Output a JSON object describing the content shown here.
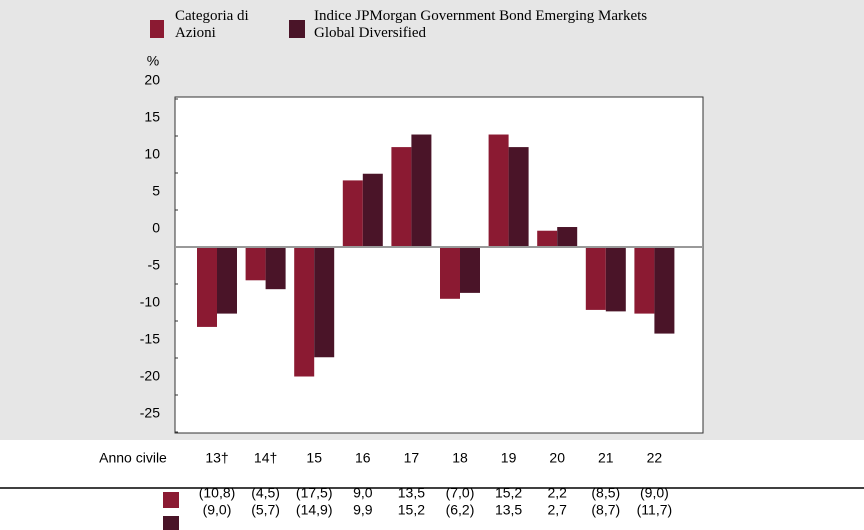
{
  "chart_data": {
    "type": "bar",
    "y_label": "%",
    "x_label": "Anno civile",
    "categories": [
      "13†",
      "14†",
      "15",
      "16",
      "17",
      "18",
      "19",
      "20",
      "21",
      "22"
    ],
    "series": [
      {
        "name": "Categoria di Azioni",
        "color": "#8b1a32",
        "values": [
          -10.8,
          -4.5,
          -17.5,
          9.0,
          13.5,
          -7.0,
          15.2,
          2.2,
          -8.5,
          -9.0
        ],
        "value_labels": [
          "(10,8)",
          "(4,5)",
          "(17,5)",
          "9,0",
          "13,5",
          "(7,0)",
          "15,2",
          "2,2",
          "(8,5)",
          "(9,0)"
        ]
      },
      {
        "name": "Indice JPMorgan Government Bond Emerging Markets Global Diversified",
        "color": "#4a1428",
        "values": [
          -9.0,
          -5.7,
          -14.9,
          9.9,
          15.2,
          -6.2,
          13.5,
          2.7,
          -8.7,
          -11.7
        ],
        "value_labels": [
          "(9,0)",
          "(5,7)",
          "(14,9)",
          "9,9",
          "15,2",
          "(6,2)",
          "13,5",
          "2,7",
          "(8,7)",
          "(11,7)"
        ]
      }
    ],
    "ylim": [
      -25,
      20
    ],
    "yticks": [
      -25,
      -20,
      -15,
      -10,
      -5,
      0,
      5,
      10,
      15,
      20
    ]
  }
}
